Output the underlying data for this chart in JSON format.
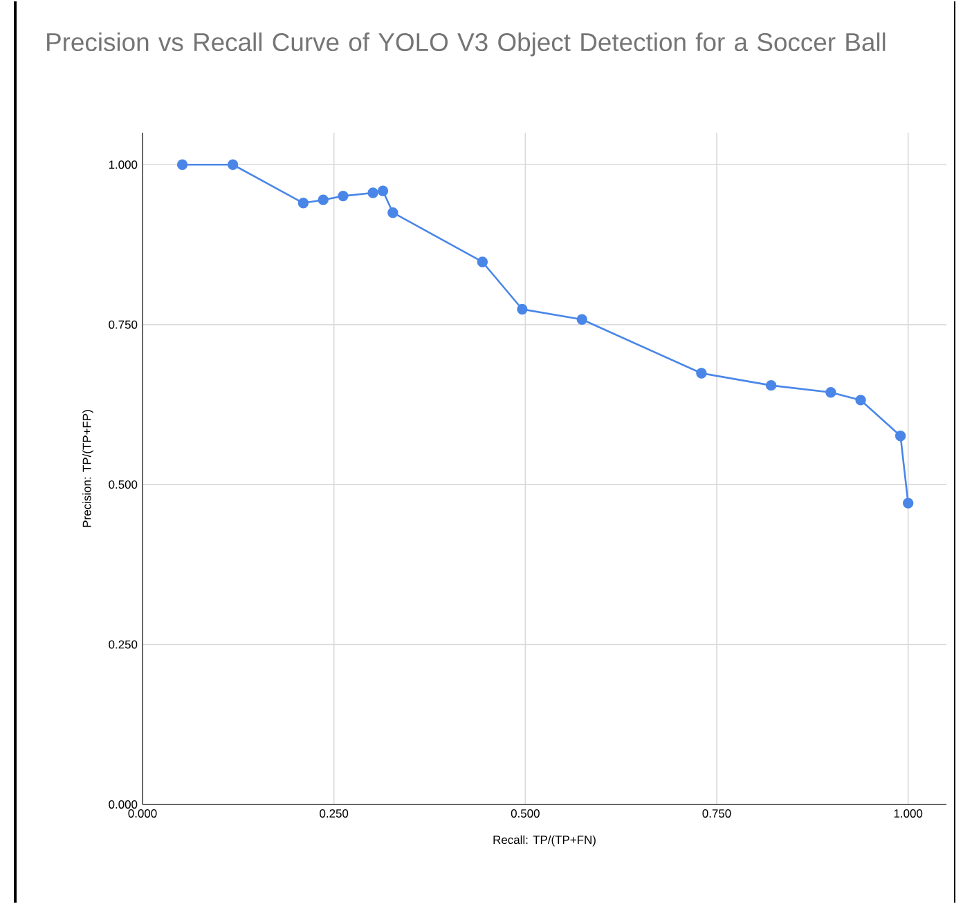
{
  "chart_data": {
    "type": "line",
    "title": "Precision vs Recall Curve of YOLO V3 Object Detection for a Soccer Ball",
    "xlabel": "Recall: TP/(TP+FN)",
    "ylabel": "Precision: TP/(TP+FP)",
    "x": [
      0.052,
      0.118,
      0.21,
      0.236,
      0.262,
      0.301,
      0.314,
      0.327,
      0.444,
      0.496,
      0.574,
      0.73,
      0.821,
      0.899,
      0.938,
      0.99,
      1.0
    ],
    "series": [
      {
        "color": "#4a86e8",
        "values": [
          1.0,
          1.0,
          0.94,
          0.945,
          0.951,
          0.956,
          0.959,
          0.925,
          0.848,
          0.774,
          0.758,
          0.674,
          0.655,
          0.644,
          0.632,
          0.576,
          0.471
        ]
      }
    ],
    "xlim": [
      0,
      1.05
    ],
    "ylim": [
      0,
      1.05
    ],
    "xticks": [
      {
        "value": 0,
        "label": "0.000"
      },
      {
        "value": 0.25,
        "label": "0.250"
      },
      {
        "value": 0.5,
        "label": "0.500"
      },
      {
        "value": 0.75,
        "label": "0.750"
      },
      {
        "value": 1,
        "label": "1.000"
      }
    ],
    "yticks": [
      {
        "value": 0,
        "label": "0.000"
      },
      {
        "value": 0.25,
        "label": "0.250"
      },
      {
        "value": 0.5,
        "label": "0.500"
      },
      {
        "value": 0.75,
        "label": "0.750"
      },
      {
        "value": 1,
        "label": "1.000"
      }
    ],
    "grid": true,
    "marker": "circle",
    "line_style": "solid",
    "legend": false
  }
}
